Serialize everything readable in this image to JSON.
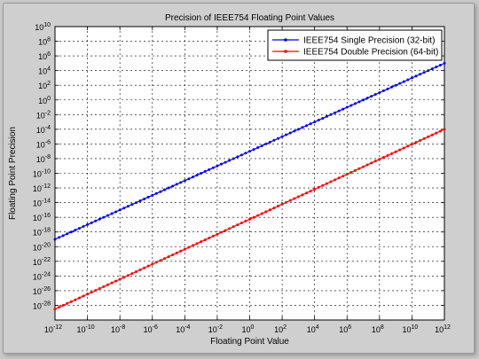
{
  "chart_data": {
    "type": "line",
    "title": "Precision of IEEE754 Floating Point Values",
    "xlabel": "Floating Point Value",
    "ylabel": "Floating Point Precision",
    "xscale": "log",
    "yscale": "log",
    "xlim": [
      1e-12,
      1000000000000.0
    ],
    "ylim": [
      1e-30,
      10000000000.0
    ],
    "grid": true,
    "legend_position": "top-right",
    "x_ticks": [
      {
        "base": "10",
        "exp": "-12"
      },
      {
        "base": "10",
        "exp": "-10"
      },
      {
        "base": "10",
        "exp": "-8"
      },
      {
        "base": "10",
        "exp": "-6"
      },
      {
        "base": "10",
        "exp": "-4"
      },
      {
        "base": "10",
        "exp": "-2"
      },
      {
        "base": "10",
        "exp": "0"
      },
      {
        "base": "10",
        "exp": "2"
      },
      {
        "base": "10",
        "exp": "4"
      },
      {
        "base": "10",
        "exp": "6"
      },
      {
        "base": "10",
        "exp": "8"
      },
      {
        "base": "10",
        "exp": "10"
      },
      {
        "base": "10",
        "exp": "12"
      }
    ],
    "y_ticks": [
      {
        "base": "10",
        "exp": "-28"
      },
      {
        "base": "10",
        "exp": "-26"
      },
      {
        "base": "10",
        "exp": "-24"
      },
      {
        "base": "10",
        "exp": "-22"
      },
      {
        "base": "10",
        "exp": "-20"
      },
      {
        "base": "10",
        "exp": "-18"
      },
      {
        "base": "10",
        "exp": "-16"
      },
      {
        "base": "10",
        "exp": "-14"
      },
      {
        "base": "10",
        "exp": "-12"
      },
      {
        "base": "10",
        "exp": "-10"
      },
      {
        "base": "10",
        "exp": "-8"
      },
      {
        "base": "10",
        "exp": "-6"
      },
      {
        "base": "10",
        "exp": "-4"
      },
      {
        "base": "10",
        "exp": "-2"
      },
      {
        "base": "10",
        "exp": "0"
      },
      {
        "base": "10",
        "exp": "2"
      },
      {
        "base": "10",
        "exp": "4"
      },
      {
        "base": "10",
        "exp": "6"
      },
      {
        "base": "10",
        "exp": "8"
      },
      {
        "base": "10",
        "exp": "10"
      }
    ],
    "series": [
      {
        "name": "IEEE754 Single Precision (32-bit)",
        "color": "#0000ff",
        "x": [
          1e-12,
          1000000000000.0
        ],
        "y": [
          1e-19,
          100000.0
        ],
        "marker": "dot"
      },
      {
        "name": "IEEE754 Double Precision (64-bit)",
        "color": "#ff0000",
        "x": [
          1e-12,
          1000000000000.0
        ],
        "y": [
          3e-29,
          0.0001
        ],
        "marker": "dot"
      }
    ]
  }
}
